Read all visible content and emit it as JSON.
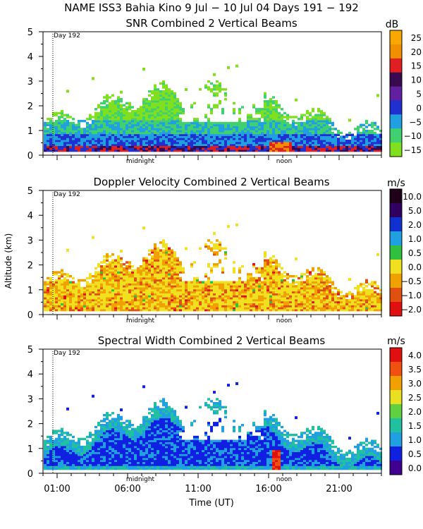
{
  "title": "NAME ISS3 Bahia Kino    9 Jul − 10 Jul 04 Days 191 − 192",
  "ylabel": "Altitude (km)",
  "xlabel": "Time (UT)",
  "x_tick_labels": [
    "01:00",
    "06:00",
    "11:00",
    "16:00",
    "21:00"
  ],
  "x_tick_hours": [
    1,
    6,
    11,
    16,
    21
  ],
  "x_range_hours": [
    0,
    24
  ],
  "markers": {
    "day": "Day 192",
    "midnight": "midnight",
    "noon": "noon",
    "midnight_hour": 6.9,
    "noon_hour": 17.1
  },
  "chart_data": [
    {
      "type": "heatmap",
      "title": "SNR Combined 2 Vertical Beams",
      "unit": "dB",
      "ylim": [
        0,
        5
      ],
      "y_ticks": [
        "0",
        "1",
        "2",
        "3",
        "4",
        "5"
      ],
      "colorbar_labels": [
        "25",
        "20",
        "15",
        "10",
        "5",
        "0",
        "−5",
        "−10",
        "−15"
      ],
      "colorbar_colors": [
        "#f8a800",
        "#f09000",
        "#e02020",
        "#3a0a50",
        "#6020a0",
        "#2030d0",
        "#20a0e0",
        "#40d070",
        "#80e020"
      ]
    },
    {
      "type": "heatmap",
      "title": "Doppler Velocity Combined 2 Vertical Beams",
      "unit": "m/s",
      "ylim": [
        0,
        5
      ],
      "y_ticks": [
        "0",
        "1",
        "2",
        "3",
        "4",
        "5"
      ],
      "colorbar_labels": [
        "10.0",
        "5.0",
        "2.0",
        "1.0",
        "0.5",
        "0.0",
        "−0.5",
        "−1.0",
        "−2.0"
      ],
      "colorbar_colors": [
        "#200018",
        "#300060",
        "#1030d0",
        "#20a0e0",
        "#30c040",
        "#f0e020",
        "#f0a000",
        "#e05010",
        "#e01010"
      ]
    },
    {
      "type": "heatmap",
      "title": "Spectral Width Combined 2 Vertical Beams",
      "unit": "m/s",
      "ylim": [
        0,
        5
      ],
      "y_ticks": [
        "0",
        "1",
        "2",
        "3",
        "4",
        "5"
      ],
      "colorbar_labels": [
        "4.0",
        "3.5",
        "3.0",
        "2.5",
        "2.0",
        "1.5",
        "1.0",
        "0.5",
        "0.0"
      ],
      "colorbar_colors": [
        "#e01010",
        "#f05010",
        "#f0a000",
        "#e8e020",
        "#60d040",
        "#20c0a0",
        "#20a0e0",
        "#1020e0",
        "#400090"
      ]
    }
  ]
}
